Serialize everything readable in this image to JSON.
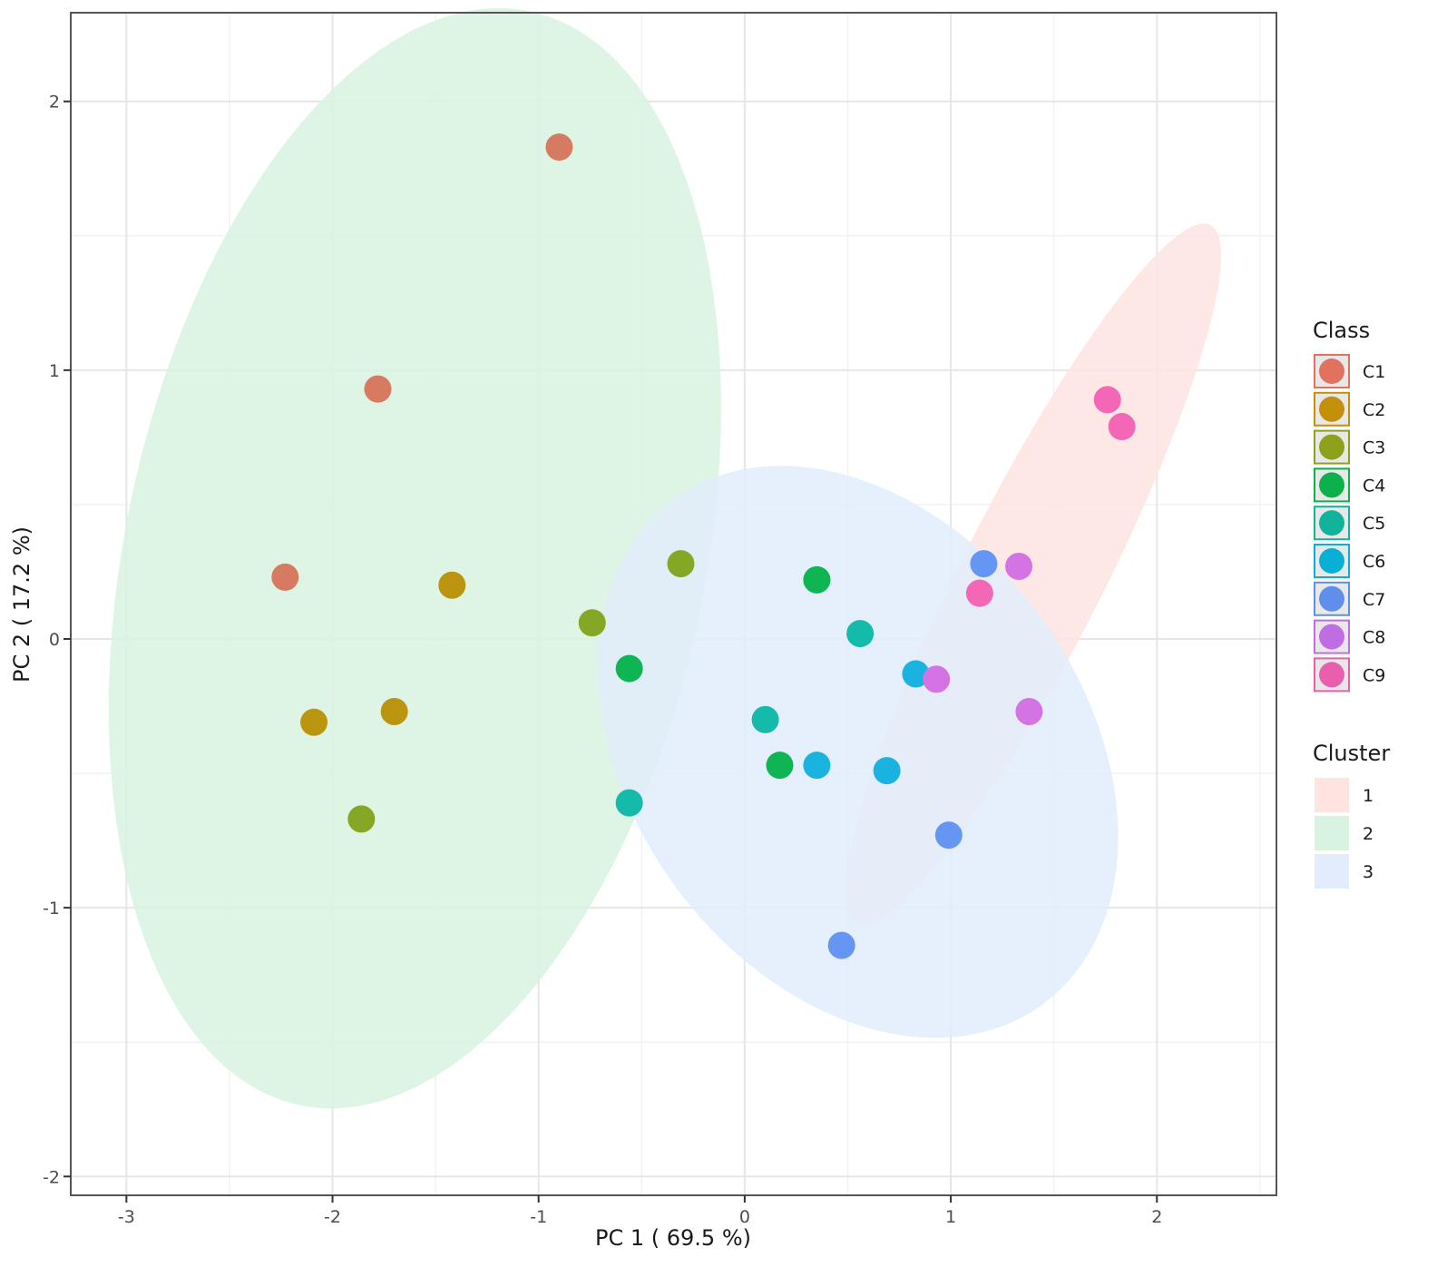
{
  "chart_data": {
    "type": "scatter",
    "title": "",
    "xlabel": "PC 1 ( 69.5 %)",
    "ylabel": "PC 2 ( 17.2 %)",
    "xlim": [
      -3.27,
      2.58
    ],
    "ylim": [
      -2.07,
      2.33
    ],
    "xticks": [
      -3,
      -2,
      -1,
      0,
      1,
      2
    ],
    "yticks": [
      -2,
      -1,
      0,
      1,
      2
    ],
    "xtick_labels": [
      "-3",
      "-2",
      "-1",
      "0",
      "1",
      "2"
    ],
    "ytick_labels": [
      "-2",
      "-1",
      "0",
      "1",
      "2"
    ],
    "grid": true,
    "legend_position": "right",
    "legends": {
      "class": {
        "title": "Class",
        "entries": [
          {
            "label": "C1",
            "color": "#E0725F"
          },
          {
            "label": "C2",
            "color": "#C4900A"
          },
          {
            "label": "C3",
            "color": "#8FA11A"
          },
          {
            "label": "C4",
            "color": "#0DB14B"
          },
          {
            "label": "C5",
            "color": "#11B39A"
          },
          {
            "label": "C6",
            "color": "#0AAFD6"
          },
          {
            "label": "C7",
            "color": "#5F8FEA"
          },
          {
            "label": "C8",
            "color": "#C06DE5"
          },
          {
            "label": "C9",
            "color": "#E95FAE"
          }
        ]
      },
      "cluster": {
        "title": "Cluster",
        "entries": [
          {
            "label": "1",
            "color": "#FDE4E1"
          },
          {
            "label": "2",
            "color": "#D8F3E0"
          },
          {
            "label": "3",
            "color": "#E2ECFC"
          }
        ]
      }
    },
    "series": [
      {
        "name": "C1",
        "color": "#D67A62",
        "points": [
          [
            -0.9,
            1.83
          ],
          [
            -1.78,
            0.93
          ],
          [
            -2.23,
            0.23
          ]
        ]
      },
      {
        "name": "C2",
        "color": "#BB9510",
        "points": [
          [
            -1.42,
            0.2
          ],
          [
            -2.09,
            -0.31
          ],
          [
            -1.7,
            -0.27
          ]
        ]
      },
      {
        "name": "C3",
        "color": "#86A626",
        "points": [
          [
            -0.31,
            0.28
          ],
          [
            -0.74,
            0.06
          ],
          [
            -1.86,
            -0.67
          ]
        ]
      },
      {
        "name": "C4",
        "color": "#10B553",
        "points": [
          [
            0.35,
            0.22
          ],
          [
            -0.56,
            -0.11
          ],
          [
            0.17,
            -0.47
          ]
        ]
      },
      {
        "name": "C5",
        "color": "#14BBAA",
        "points": [
          [
            0.56,
            0.02
          ],
          [
            0.1,
            -0.3
          ],
          [
            -0.56,
            -0.61
          ]
        ]
      },
      {
        "name": "C6",
        "color": "#1AB3E0",
        "points": [
          [
            0.35,
            -0.47
          ],
          [
            0.83,
            -0.13
          ],
          [
            0.69,
            -0.49
          ]
        ]
      },
      {
        "name": "C7",
        "color": "#6596F4",
        "points": [
          [
            1.16,
            0.28
          ],
          [
            0.99,
            -0.73
          ],
          [
            0.47,
            -1.14
          ]
        ]
      },
      {
        "name": "C8",
        "color": "#D474E4",
        "points": [
          [
            1.33,
            0.27
          ],
          [
            0.93,
            -0.15
          ],
          [
            1.38,
            -0.27
          ]
        ]
      },
      {
        "name": "C9",
        "color": "#F466B6",
        "points": [
          [
            1.76,
            0.89
          ],
          [
            1.83,
            0.79
          ],
          [
            1.14,
            0.17
          ]
        ]
      }
    ],
    "clusters": [
      {
        "name": "1",
        "fill": "#FDE4E1",
        "ellipse": {
          "cx": 1.4,
          "cy": 0.24,
          "rx": 1.56,
          "ry": 0.32,
          "angle_deg": 56
        }
      },
      {
        "name": "2",
        "fill": "#D8F3E0",
        "ellipse": {
          "cx": -1.6,
          "cy": 0.3,
          "rx": 2.12,
          "ry": 1.38,
          "angle_deg": 70
        }
      },
      {
        "name": "3",
        "fill": "#E2ECFC",
        "ellipse": {
          "cx": 0.55,
          "cy": -0.42,
          "rx": 1.35,
          "ry": 0.95,
          "angle_deg": -30
        }
      }
    ]
  }
}
